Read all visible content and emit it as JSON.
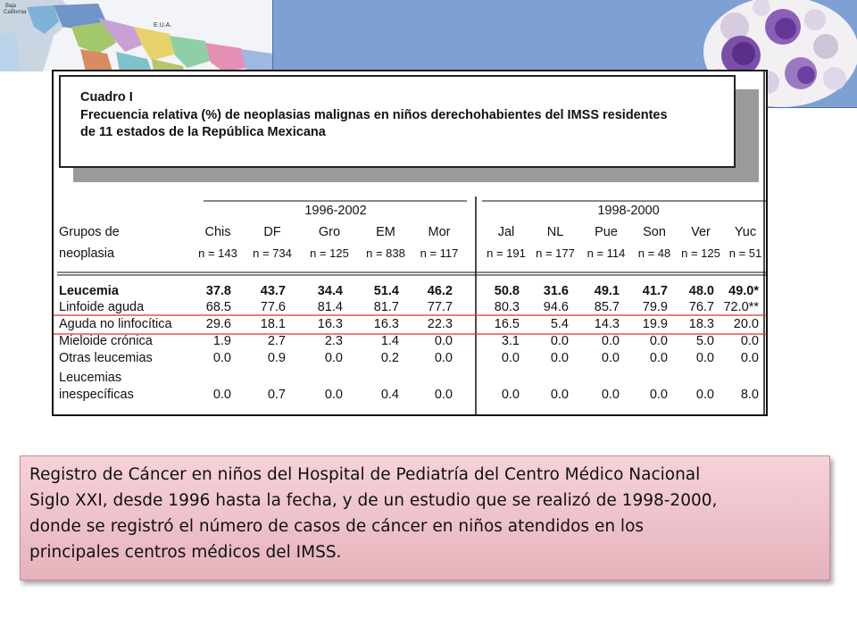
{
  "map": {
    "label_country": "E.U.A.",
    "label_state": [
      "Baja",
      "California"
    ]
  },
  "caption": {
    "label": "Cuadro I",
    "line1": "Frecuencia relativa (%) de neoplasias malignas en niños derechohabientes del IMSS residentes",
    "line2": "de 11 estados de la República Mexicana"
  },
  "table": {
    "row_header": [
      "Grupos de",
      "neoplasia"
    ],
    "periods": [
      "1996-2002",
      "1998-2000"
    ],
    "states": [
      "Chis",
      "DF",
      "Gro",
      "EM",
      "Mor",
      "Jal",
      "NL",
      "Pue",
      "Son",
      "Ver",
      "Yuc"
    ],
    "n": [
      "n = 143",
      "n = 734",
      "n = 125",
      "n = 838",
      "n = 117",
      "n = 191",
      "n = 177",
      "n = 114",
      "n = 48",
      "n = 125",
      "n = 51"
    ],
    "rows": [
      {
        "label": "Leucemia",
        "values": [
          "37.8",
          "43.7",
          "34.4",
          "51.4",
          "46.2",
          "50.8",
          "31.6",
          "49.1",
          "41.7",
          "48.0",
          "49.0*"
        ]
      },
      {
        "label": "Linfoide aguda",
        "values": [
          "68.5",
          "77.6",
          "81.4",
          "81.7",
          "77.7",
          "80.3",
          "94.6",
          "85.7",
          "79.9",
          "76.7",
          "72.0**"
        ]
      },
      {
        "label": "Aguda no linfocítica",
        "values": [
          "29.6",
          "18.1",
          "16.3",
          "16.3",
          "22.3",
          "16.5",
          "5.4",
          "14.3",
          "19.9",
          "18.3",
          "20.0"
        ]
      },
      {
        "label": "Mieloide crónica",
        "values": [
          "1.9",
          "2.7",
          "2.3",
          "1.4",
          "0.0",
          "3.1",
          "0.0",
          "0.0",
          "0.0",
          "5.0",
          "0.0"
        ]
      },
      {
        "label": "Otras leucemias",
        "values": [
          "0.0",
          "0.9",
          "0.0",
          "0.2",
          "0.0",
          "0.0",
          "0.0",
          "0.0",
          "0.0",
          "0.0",
          "0.0"
        ]
      },
      {
        "label": "Leucemias inespecíficas",
        "label_lines": [
          "Leucemias",
          "inespecíficas"
        ],
        "values": [
          "0.0",
          "0.7",
          "0.0",
          "0.4",
          "0.0",
          "0.0",
          "0.0",
          "0.0",
          "0.0",
          "0.0",
          "8.0"
        ]
      }
    ],
    "highlight_color": "#d9322b"
  },
  "body_text": {
    "lines": [
      "Registro de Cáncer en niños del Hospital de Pediatría del Centro Médico Nacional",
      "Siglo XXI, desde 1996 hasta la fecha, y de un estudio que se realizó de 1998-2000,",
      "donde se registró el número de casos de cáncer en niños atendidos en los",
      "principales centros médicos del IMSS."
    ]
  }
}
